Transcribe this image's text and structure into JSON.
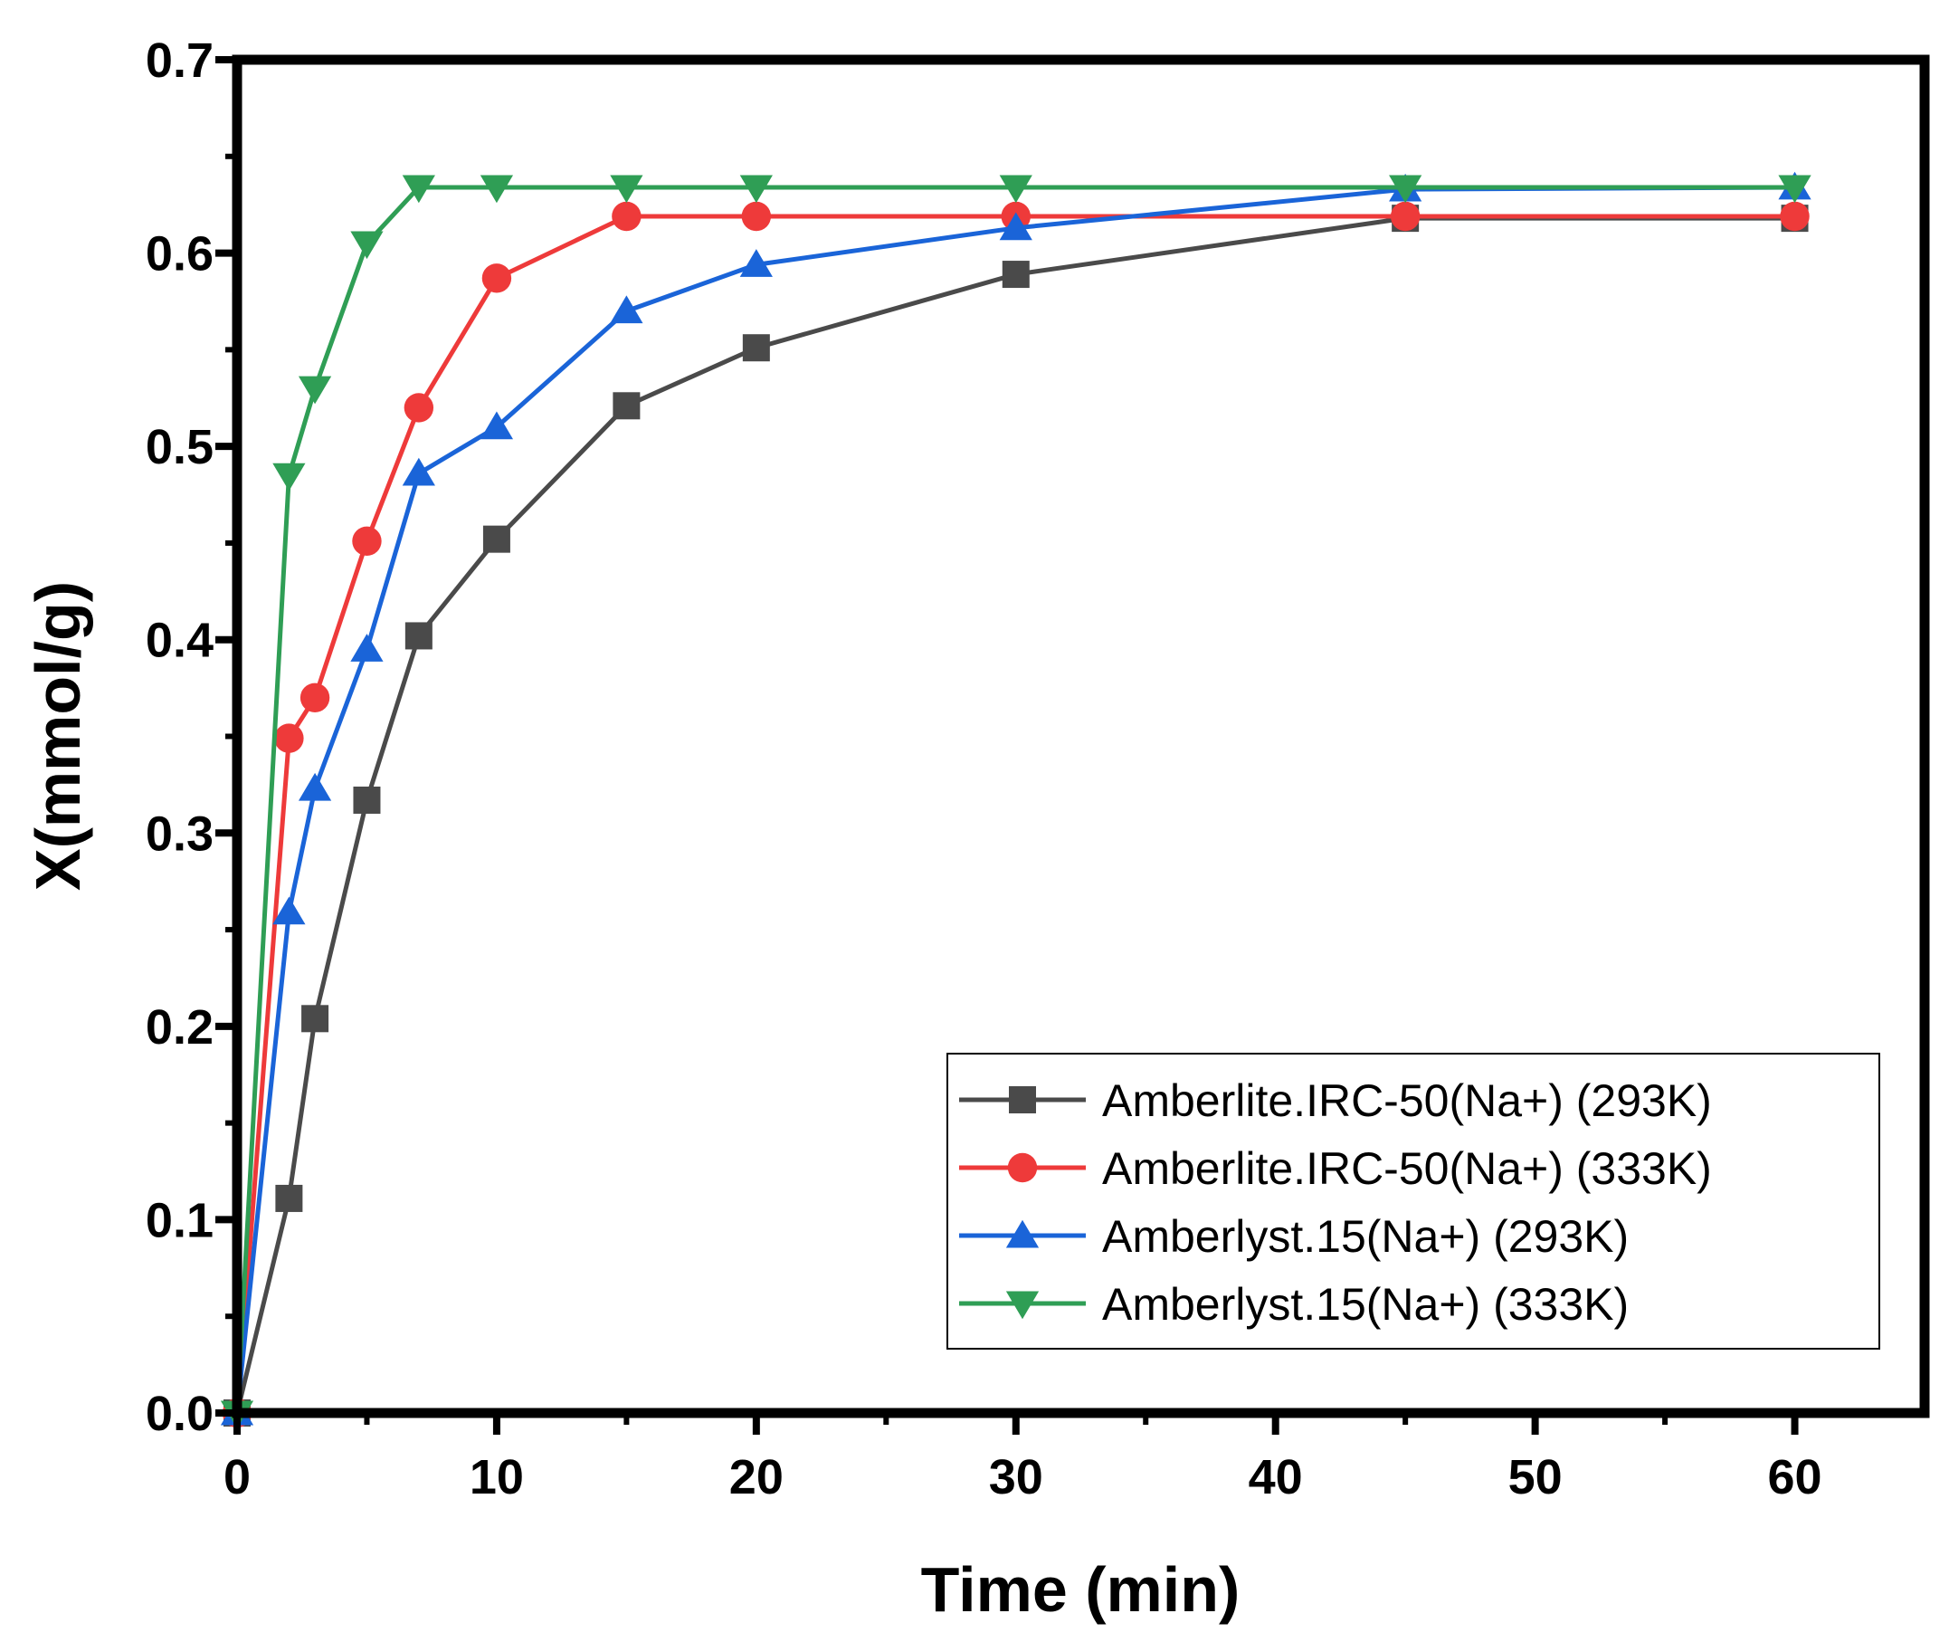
{
  "chart_data": {
    "type": "line",
    "title": "",
    "xlabel": "Time (min)",
    "ylabel": "X(mmol/g)",
    "xlim": [
      0,
      65
    ],
    "ylim": [
      0,
      0.7
    ],
    "xticks": [
      0,
      10,
      20,
      30,
      40,
      50,
      60
    ],
    "xtick_labels": [
      "0",
      "10",
      "20",
      "30",
      "40",
      "50",
      "60"
    ],
    "yticks": [
      0.0,
      0.1,
      0.2,
      0.3,
      0.4,
      0.5,
      0.6,
      0.7
    ],
    "ytick_labels": [
      "0.0",
      "0.1",
      "0.2",
      "0.3",
      "0.4",
      "0.5",
      "0.6",
      "0.7"
    ],
    "grid": false,
    "legend_position": "bottom-right",
    "x": [
      0,
      2,
      3,
      5,
      7,
      10,
      15,
      20,
      30,
      45,
      60
    ],
    "series": [
      {
        "name": "Amberlite.IRC-50(Na+) (293K)",
        "marker": "square",
        "color": "#4a4a4a",
        "values": [
          0.0,
          0.111,
          0.204,
          0.317,
          0.402,
          0.452,
          0.521,
          0.551,
          0.589,
          0.618,
          0.618
        ]
      },
      {
        "name": "Amberlite.IRC-50(Na+) (333K)",
        "marker": "circle",
        "color": "#ee3a3a",
        "values": [
          0.0,
          0.349,
          0.37,
          0.451,
          0.52,
          0.587,
          0.619,
          0.619,
          0.619,
          0.619,
          0.619
        ]
      },
      {
        "name": "Amberlyst.15(Na+) (293K)",
        "marker": "triangle-up",
        "color": "#1a64d8",
        "values": [
          0.0,
          0.259,
          0.323,
          0.395,
          0.486,
          0.51,
          0.57,
          0.594,
          0.613,
          0.633,
          0.634
        ]
      },
      {
        "name": "Amberlyst.15(Na+) (333K)",
        "marker": "triangle-down",
        "color": "#2f9e55",
        "values": [
          0.0,
          0.485,
          0.53,
          0.605,
          0.634,
          0.634,
          0.634,
          0.634,
          0.634,
          0.634,
          0.634
        ]
      }
    ]
  }
}
